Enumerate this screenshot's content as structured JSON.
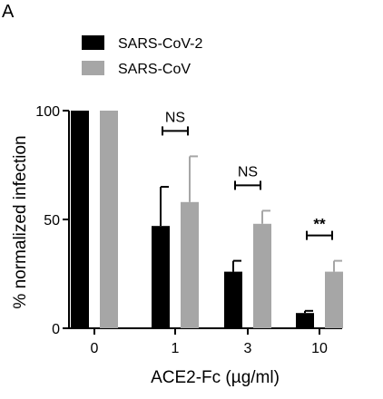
{
  "panel_label": "A",
  "chart_data": {
    "type": "bar",
    "categories": [
      "0",
      "1",
      "3",
      "10"
    ],
    "series": [
      {
        "name": "SARS-CoV-2",
        "color": "#000000",
        "values": [
          100,
          47,
          26,
          7
        ],
        "errors": [
          0,
          18,
          5,
          1
        ]
      },
      {
        "name": "SARS-CoV",
        "color": "#a6a6a6",
        "values": [
          100,
          58,
          48,
          26
        ],
        "errors": [
          0,
          21,
          6,
          5
        ]
      }
    ],
    "xlabel": "ACE2-Fc (µg/ml)",
    "ylabel": "% normalized infection",
    "ylim": [
      0,
      100
    ],
    "yticks": [
      0,
      50,
      100
    ],
    "legend_position": "top-left",
    "grid": false,
    "significance": [
      {
        "category": "1",
        "label": "NS"
      },
      {
        "category": "3",
        "label": "NS"
      },
      {
        "category": "10",
        "label": "**"
      }
    ]
  }
}
